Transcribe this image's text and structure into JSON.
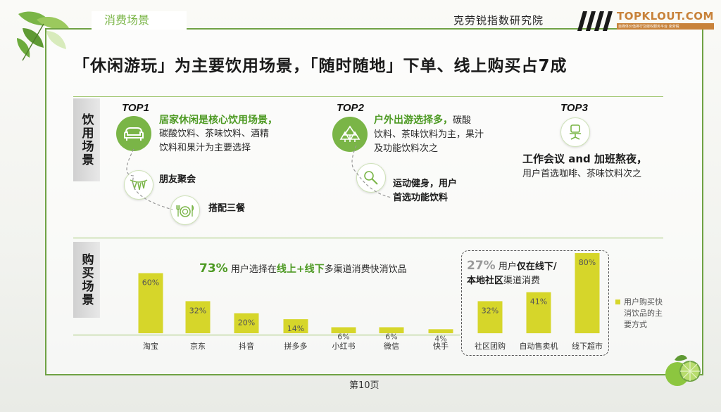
{
  "header": {
    "section_tag": "消费场景",
    "institute": "克劳锐指数研究院",
    "brand_name": "TOPKLOUT.COM",
    "brand_sub": "自媒体价值排行及版权服务平台 克劳锐"
  },
  "headline": "「休闲游玩」为主要饮用场景，「随时随地」下单、线上购买占7成",
  "scenes": {
    "label": "饮用场景",
    "top1": {
      "rank": "TOP1",
      "lead": "居家休闲是核心饮用场景，",
      "body_line1": "碳酸饮料、茶味饮料、酒精",
      "body_line2": "饮料和果汁为主要选择",
      "sub1": "朋友聚会",
      "sub2": "搭配三餐"
    },
    "top2": {
      "rank": "TOP2",
      "lead": "户外出游选择多，",
      "lead_tail": "碳酸",
      "body_line1": "饮料、茶味饮料为主，果汁",
      "body_line2": "及功能饮料次之",
      "sub_line1": "运动健身，用户",
      "sub_line2": "首选功能饮料"
    },
    "top3": {
      "rank": "TOP3",
      "lead": "工作会议 and 加班熬夜，",
      "body": "用户首选咖啡、茶味饮料次之"
    }
  },
  "purchase": {
    "label": "购买场景",
    "stat_online": {
      "pct": "73%",
      "pre": "用户选择在",
      "hl": "线上+线下",
      "post": "多渠道消费快消饮品"
    },
    "stat_offline": {
      "pct": "27%",
      "pre": "用户",
      "hl1": "仅在线下/",
      "hl2": "本地社区",
      "post": "渠道消费"
    },
    "legend": [
      "用户购买快",
      "消饮品的主",
      "要方式"
    ]
  },
  "chart_data": {
    "type": "bar",
    "categories": [
      "淘宝",
      "京东",
      "抖音",
      "拼多多",
      "小红书",
      "微信",
      "快手",
      "社区团购",
      "自动售卖机",
      "线下超市"
    ],
    "values": [
      60,
      32,
      20,
      14,
      6,
      6,
      4,
      32,
      41,
      80
    ],
    "value_labels": [
      "60%",
      "32%",
      "20%",
      "14%",
      "6%",
      "6%",
      "4%",
      "32%",
      "41%",
      "80%"
    ],
    "series": [
      {
        "name": "用户购买快消饮品的主要方式",
        "values": [
          60,
          32,
          20,
          14,
          6,
          6,
          4,
          32,
          41,
          80
        ]
      }
    ],
    "unit": "%",
    "ylim": [
      0,
      80
    ],
    "color": "#d6d62a",
    "legend_position": "right"
  },
  "colors": {
    "accent": "#7ab547",
    "bar": "#d6d62a",
    "text_green": "#4e9a24"
  },
  "footer": {
    "page": "第10页"
  }
}
